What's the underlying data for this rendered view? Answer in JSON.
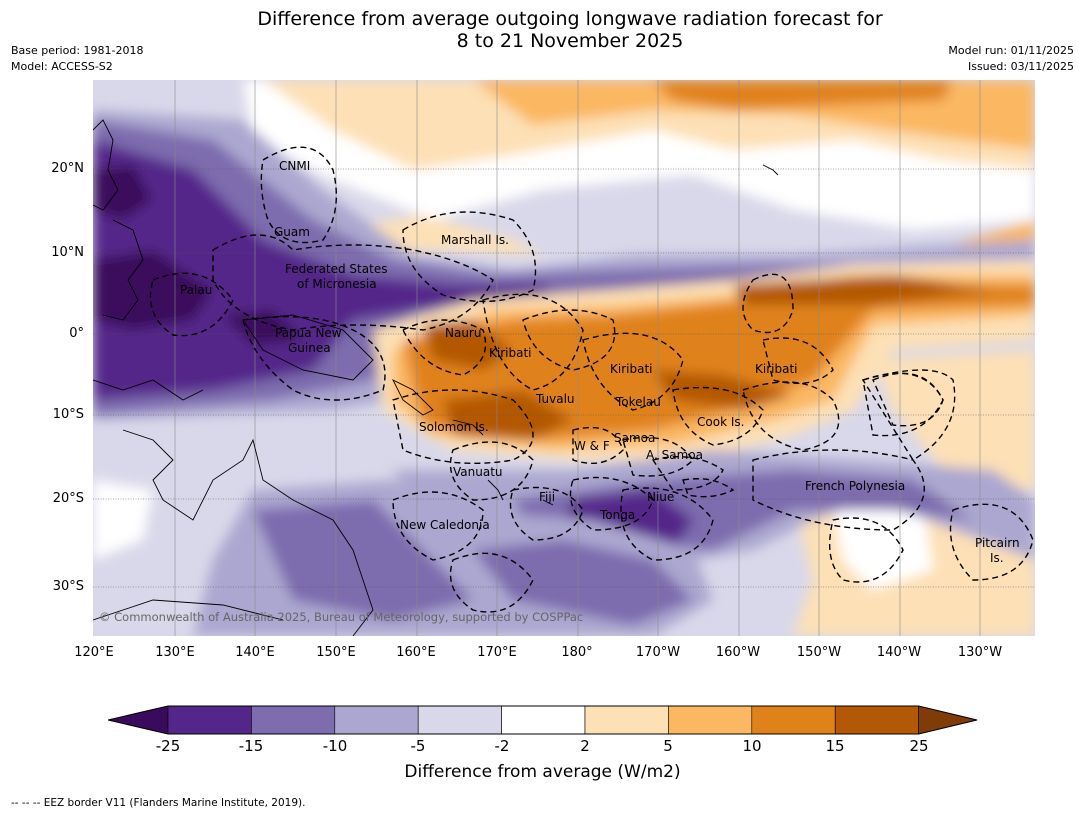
{
  "title": {
    "line1": "Difference from average outgoing longwave radiation forecast for",
    "line2": "8 to 21 November 2025"
  },
  "meta": {
    "base_period": "Base period: 1981-2018",
    "model": "Model: ACCESS-S2",
    "model_run": "Model run: 01/11/2025",
    "issued": "Issued: 03/11/2025"
  },
  "axes": {
    "lat_labels": [
      "20°N",
      "10°N",
      "0°",
      "10°S",
      "20°S",
      "30°S"
    ],
    "lon_labels": [
      "120°E",
      "130°E",
      "140°E",
      "150°E",
      "160°E",
      "170°E",
      "180°",
      "170°W",
      "160°W",
      "150°W",
      "140°W",
      "130°W"
    ]
  },
  "places": [
    "CNMI",
    "Guam",
    "Marshall Is.",
    "Federated States",
    "of Micronesia",
    "Palau",
    "Papua New",
    "Guinea",
    "Nauru",
    "Kiribati",
    "Kiribati",
    "Kiribati",
    "Tuvalu",
    "Tokelau",
    "Cook Is.",
    "Solomon Is.",
    "W & F",
    "Samoa",
    "A. Samoa",
    "Vanuatu",
    "Fiji",
    "Niue",
    "Tonga",
    "French Polynesia",
    "New Caledonia",
    "Pitcairn",
    "Is."
  ],
  "copyright": "© Commonwealth of Australia 2025, Bureau of Meteorology, supported by COSPPac",
  "colorbar": {
    "labels": [
      "-25",
      "-15",
      "-10",
      "-5",
      "-2",
      "2",
      "5",
      "10",
      "15",
      "25"
    ],
    "colors": [
      "#3a0a5c",
      "#54268a",
      "#7d6cae",
      "#aca7d0",
      "#d9d8ea",
      "#ffffff",
      "#fde0b6",
      "#fbb762",
      "#e0821a",
      "#b35806",
      "#7f3b08"
    ],
    "title": "Difference from average (W/m2)"
  },
  "footer": "--  --  -- EEZ border V11 (Flanders Marine Institute, 2019)."
}
